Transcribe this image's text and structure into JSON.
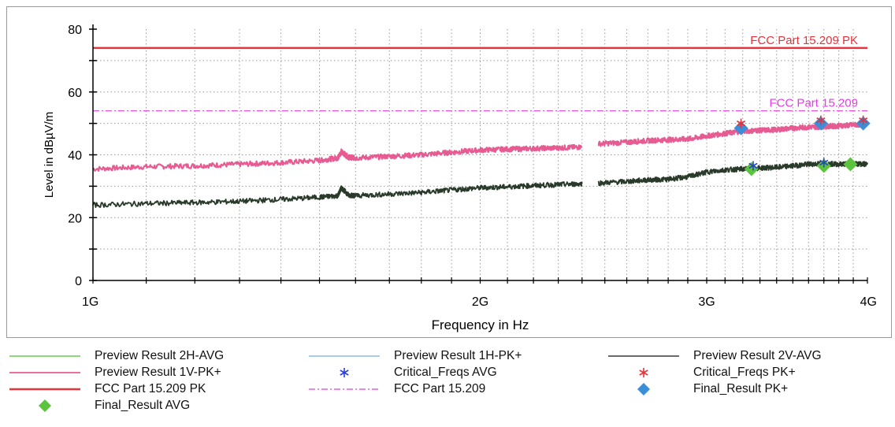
{
  "chart_data": {
    "type": "line",
    "xlabel": "Frequency in Hz",
    "ylabel": "Level in dBµV/m",
    "x_scale": "log",
    "xlim": [
      1000000000,
      4000000000
    ],
    "ylim": [
      0,
      80
    ],
    "x_ticks": [
      {
        "value": 1000000000,
        "label": "1G"
      },
      {
        "value": 2000000000,
        "label": "2G"
      },
      {
        "value": 3000000000,
        "label": "3G"
      },
      {
        "value": 4000000000,
        "label": "4G"
      }
    ],
    "y_ticks": [
      {
        "value": 0,
        "label": "0"
      },
      {
        "value": 20,
        "label": "20"
      },
      {
        "value": 40,
        "label": "40"
      },
      {
        "value": 60,
        "label": "60"
      },
      {
        "value": 80,
        "label": "80"
      }
    ],
    "grid": true,
    "limit_lines": [
      {
        "name": "FCC Part 15.209 PK",
        "value": 74,
        "color": "#e8323c",
        "style": "solid"
      },
      {
        "name": "FCC Part 15.209",
        "value": 54,
        "color": "#e33ee3",
        "style": "dashdot"
      }
    ],
    "series": [
      {
        "name": "Preview Result 1V-PK+",
        "color": "#e75b93",
        "segments": [
          {
            "x": [
              1000000000,
              1100000000,
              1200000000,
              1300000000,
              1400000000,
              1500000000,
              1550000000,
              1560000000,
              1580000000,
              1600000000,
              1700000000,
              1800000000,
              1900000000,
              2000000000,
              2100000000,
              2200000000,
              2300000000,
              2400000000
            ],
            "y": [
              35.5,
              36.2,
              36.5,
              37.0,
              37.5,
              38.2,
              39.0,
              41.0,
              39.2,
              39.0,
              39.5,
              40.0,
              40.8,
              41.5,
              41.8,
              42.0,
              42.2,
              42.5
            ]
          },
          {
            "x": [
              2470000000,
              2600000000,
              2700000000,
              2800000000,
              2900000000,
              3000000000,
              3100000000,
              3200000000,
              3300000000,
              3400000000,
              3500000000,
              3600000000,
              3700000000,
              3800000000,
              3900000000,
              4000000000
            ],
            "y": [
              43.5,
              44.0,
              44.5,
              44.8,
              45.0,
              46.0,
              46.8,
              47.5,
              47.8,
              48.0,
              48.5,
              48.8,
              49.0,
              49.2,
              49.5,
              49.8
            ]
          }
        ]
      },
      {
        "name": "Preview Result 2V-AVG",
        "color": "#2a3a2a",
        "segments": [
          {
            "x": [
              1000000000,
              1100000000,
              1200000000,
              1300000000,
              1400000000,
              1500000000,
              1550000000,
              1560000000,
              1580000000,
              1600000000,
              1700000000,
              1800000000,
              1900000000,
              2000000000,
              2100000000,
              2200000000,
              2300000000,
              2400000000
            ],
            "y": [
              24.0,
              24.5,
              24.8,
              25.2,
              25.8,
              26.5,
              27.0,
              29.5,
              27.2,
              27.0,
              27.5,
              28.0,
              28.8,
              29.5,
              29.8,
              30.2,
              30.5,
              30.8
            ]
          },
          {
            "x": [
              2470000000,
              2600000000,
              2700000000,
              2800000000,
              2900000000,
              3000000000,
              3100000000,
              3200000000,
              3300000000,
              3400000000,
              3500000000,
              3600000000,
              3700000000,
              3800000000,
              3900000000,
              4000000000
            ],
            "y": [
              31.0,
              31.5,
              32.0,
              32.2,
              33.0,
              34.5,
              35.2,
              35.5,
              35.8,
              36.0,
              36.5,
              37.0,
              37.2,
              37.0,
              37.2,
              37.0
            ]
          }
        ]
      }
    ],
    "markers": [
      {
        "name": "Final_Result PK+",
        "shape": "diamond",
        "color": "#3a8fd8",
        "x": [
          3190000000,
          3680000000,
          3970000000
        ],
        "y": [
          48.5,
          50.0,
          50.0
        ]
      },
      {
        "name": "Final_Result AVG",
        "shape": "diamond",
        "color": "#5cc43c",
        "x": [
          3250000000,
          3700000000,
          3880000000
        ],
        "y": [
          35.5,
          36.5,
          37.0
        ]
      },
      {
        "name": "Critical_Freqs PK+",
        "shape": "star",
        "color": "#e8323c",
        "x": [
          3190000000,
          3680000000,
          3970000000
        ],
        "y": [
          50.0,
          51.0,
          51.0
        ]
      },
      {
        "name": "Critical_Freqs AVG",
        "shape": "star",
        "color": "#2a3fd6",
        "x": [
          3260000000,
          3700000000
        ],
        "y": [
          36.5,
          37.5
        ]
      }
    ],
    "legend": [
      {
        "label": "Preview Result 2H-AVG",
        "symbol": "line",
        "color": "#7ed36a"
      },
      {
        "label": "Preview Result 1H-PK+",
        "symbol": "line",
        "color": "#9ec4ea"
      },
      {
        "label": "Preview Result 2V-AVG",
        "symbol": "line",
        "color": "#555555"
      },
      {
        "label": "Preview Result 1V-PK+",
        "symbol": "line",
        "color": "#e75b93"
      },
      {
        "label": "Critical_Freqs AVG",
        "symbol": "star",
        "color": "#2a3fd6"
      },
      {
        "label": "Critical_Freqs PK+",
        "symbol": "star",
        "color": "#e8323c"
      },
      {
        "label": "FCC Part 15.209 PK",
        "symbol": "line",
        "color": "#e8323c"
      },
      {
        "label": "FCC Part 15.209",
        "symbol": "dashdot",
        "color": "#e33ee3"
      },
      {
        "label": "Final_Result PK+",
        "symbol": "diamond",
        "color": "#3a8fd8"
      },
      {
        "label": "Final_Result AVG",
        "symbol": "diamond",
        "color": "#5cc43c"
      }
    ],
    "legend_placement": "bottom"
  }
}
